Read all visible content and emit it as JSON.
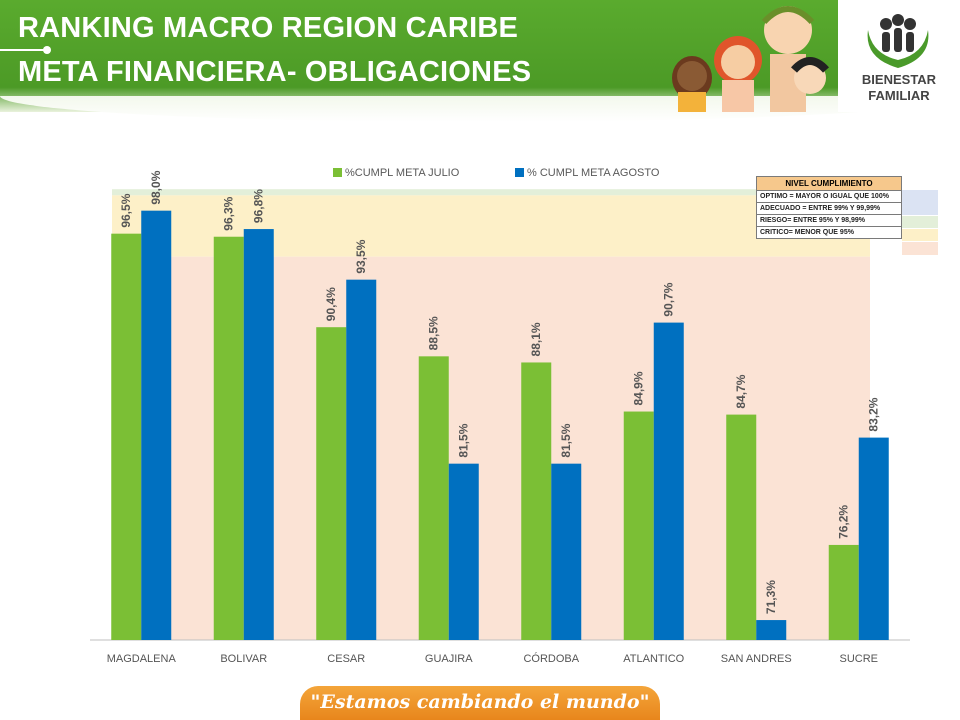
{
  "header": {
    "title_line1": "RANKING MACRO REGION CARIBE",
    "title_line2": "META FINANCIERA- OBLIGACIONES"
  },
  "logo": {
    "line1": "BIENESTAR",
    "line2": "FAMILIAR"
  },
  "footer": {
    "slogan": "\"Estamos cambiando el mundo\""
  },
  "legend_table": {
    "header": "NIVEL CUMPLIMIENTO",
    "rows": [
      {
        "label": "OPTIMO = MAYOR O IGUAL QUE 100%",
        "color": "#dbe3f3"
      },
      {
        "label": "ADECUADO = ENTRE 99% Y 99,99%",
        "color": "#e3efd9"
      },
      {
        "label": "RIESGO= ENTRE 95% Y 98,99%",
        "color": "#fdf0c8"
      },
      {
        "label": "CRITICO= MENOR QUE 95%",
        "color": "#fbe3d5"
      }
    ]
  },
  "chart_data": {
    "type": "bar",
    "categories": [
      "MAGDALENA",
      "BOLIVAR",
      "CESAR",
      "GUAJIRA",
      "CÓRDOBA",
      "ATLANTICO",
      "SAN ANDRES",
      "SUCRE"
    ],
    "series": [
      {
        "name": "%CUMPL META JULIO",
        "color": "#7bbf35",
        "values": [
          96.5,
          96.3,
          90.4,
          88.5,
          88.1,
          84.9,
          84.7,
          76.2
        ],
        "labels": [
          "96,5%",
          "96,3%",
          "90,4%",
          "88,5%",
          "88,1%",
          "84,9%",
          "84,7%",
          "76,2%"
        ]
      },
      {
        "name": "% CUMPL META AGOSTO",
        "color": "#0070c0",
        "values": [
          98.0,
          96.8,
          93.5,
          81.5,
          81.5,
          90.7,
          71.3,
          83.2
        ],
        "labels": [
          "98,0%",
          "96,8%",
          "93,5%",
          "81,5%",
          "81,5%",
          "90,7%",
          "71,3%",
          "83,2%"
        ]
      }
    ],
    "ylim": [
      70,
      100
    ],
    "bands": [
      {
        "name": "adecuado",
        "from": 99,
        "to": 100,
        "color": "#e3efd9"
      },
      {
        "name": "riesgo",
        "from": 95,
        "to": 99,
        "color": "#fdf0c8"
      },
      {
        "name": "critico",
        "from": 70,
        "to": 95,
        "color": "#fbe3d5"
      }
    ],
    "legend_position": "top",
    "grid": false
  }
}
